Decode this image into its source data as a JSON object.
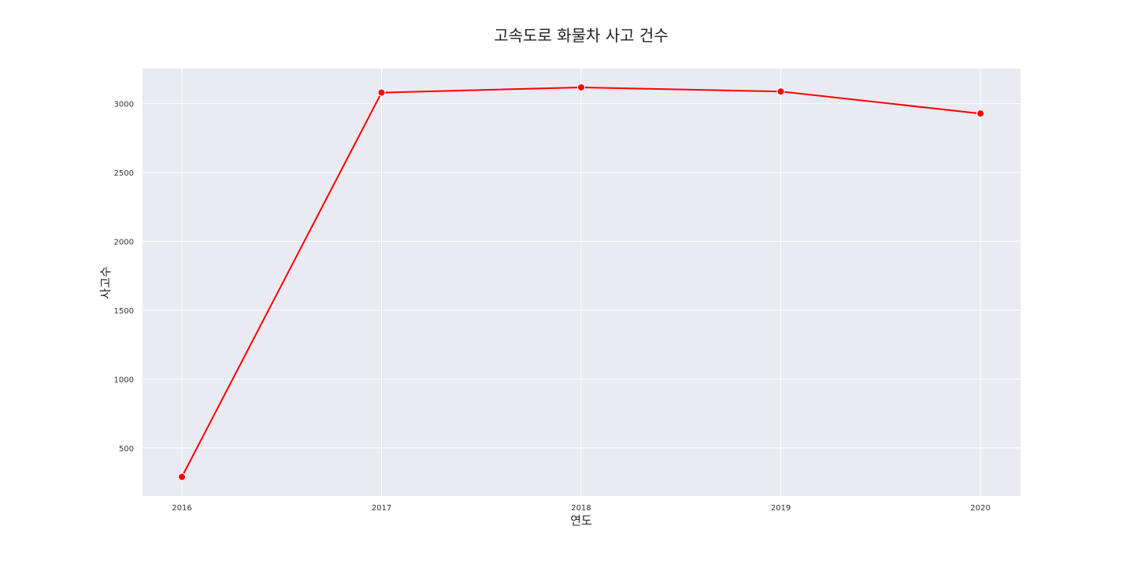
{
  "chart_data": {
    "type": "line",
    "title": "고속도로 화물차 사고 건수",
    "xlabel": "연도",
    "ylabel": "사고수",
    "categories": [
      "2016",
      "2017",
      "2018",
      "2019",
      "2020"
    ],
    "series": [
      {
        "values": [
          290,
          3080,
          3118,
          3088,
          2928
        ]
      }
    ],
    "yticks": [
      500,
      1000,
      1500,
      2000,
      2500,
      3000
    ],
    "ylim": [
      150,
      3255
    ],
    "grid": true,
    "marker": "circle",
    "colors": {
      "line": "#ff0000",
      "plot_background": "#eaeaf2",
      "grid": "#ffffff"
    }
  }
}
